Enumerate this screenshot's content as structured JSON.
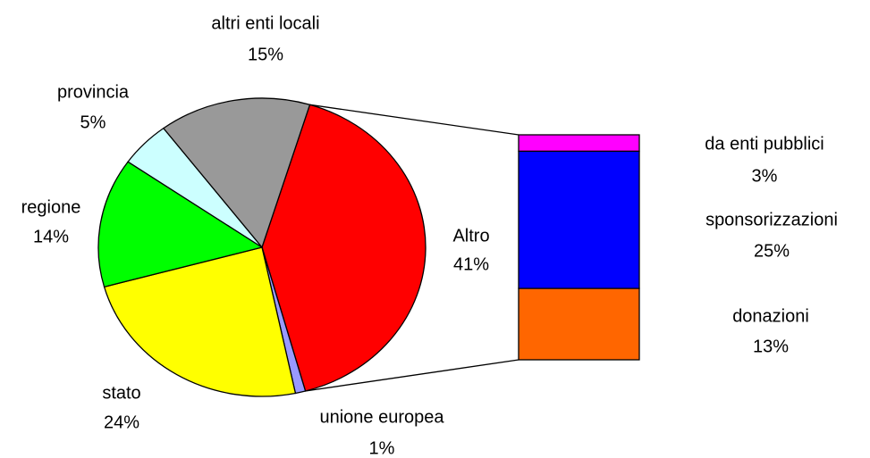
{
  "chart_data": {
    "type": "pie-of-bar",
    "categories": [
      "Altro",
      "unione europea",
      "stato",
      "regione",
      "provincia",
      "altri enti locali"
    ],
    "values": [
      41,
      1,
      24,
      14,
      5,
      15
    ],
    "value_labels": [
      "41%",
      "1%",
      "24%",
      "14%",
      "5%",
      "15%"
    ],
    "colors": [
      "#ff0000",
      "#9999ff",
      "#ffff00",
      "#00ff00",
      "#ccffff",
      "#999999"
    ],
    "bar": {
      "categories": [
        "da enti pubblici",
        "sponsorizzazioni",
        "donazioni"
      ],
      "values": [
        3,
        25,
        13
      ],
      "value_labels": [
        "3%",
        "25%",
        "13%"
      ],
      "colors": [
        "#ff00ff",
        "#0000ff",
        "#ff6600"
      ]
    }
  }
}
